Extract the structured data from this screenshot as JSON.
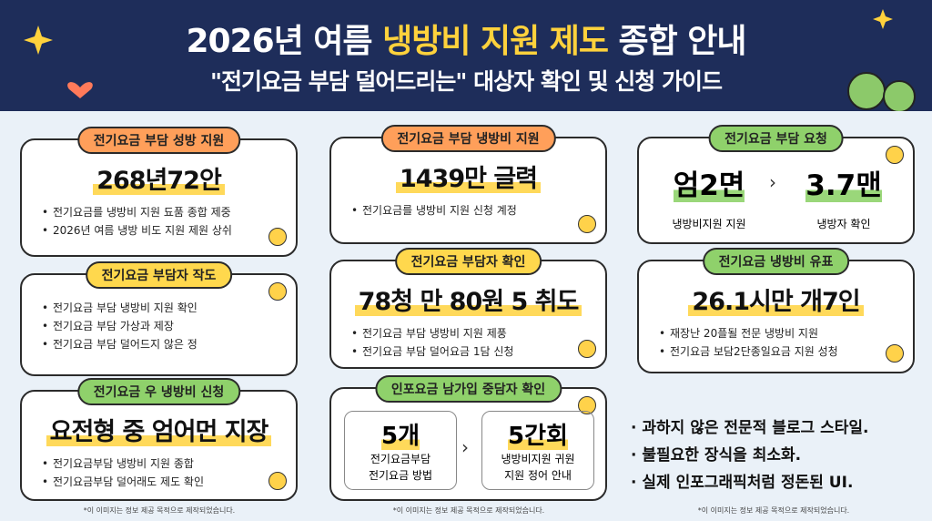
{
  "header": {
    "title_parts": [
      "2026년 여름 ",
      "냉방비 지원 제도",
      " 종합 안내"
    ],
    "subtitle": "\"전기요금 부담 덜어드리는\" 대상자 확인 및 신청 가이드"
  },
  "cards": [
    {
      "tag": "전기요금 부담 성방 지원",
      "headline": "268년72안",
      "bullets": [
        "전기요금를 냉방비 지원 됴품 종합 제중",
        "2026년 여름 냉방 비도 지원 제원 상쉬"
      ]
    },
    {
      "tag": "전기요금 부담자 작도",
      "bullets": [
        "전기요금 부담 냉방비 지원 확인",
        "전기요금 부담 가상과 제장",
        "전기요금 부담 덜어드지 않은 정"
      ]
    },
    {
      "tag": "전기요금 우 냉방비 신청",
      "headline": "요전형 중 엄어먼 지장",
      "bullets": [
        "전기요금부담 냉방비 지원 종합",
        "전기요금부담 덜어래도 제도 확인"
      ]
    },
    {
      "tag": "전기요금 부담 냉방비 지원",
      "headline": "1439만 글력",
      "bullets": [
        "전기요금를 냉방비 지원 신청 계정"
      ]
    },
    {
      "tag": "전기요금 부담자 확인",
      "headline": "78청 만 80원 5 취도",
      "bullets": [
        "전기요금 부담 냉방비 지원 제풍",
        "전기요금 부담 덜어요금 1담 신청"
      ]
    },
    {
      "tag": "인포요금 남가입 중담자 확인",
      "boxes": [
        {
          "headline": "5개",
          "lines": [
            "전기요금부담",
            "전기요금 방법"
          ]
        },
        {
          "headline": "5간회",
          "lines": [
            "냉방비지원 귀원",
            "지원 정어 안내"
          ]
        }
      ]
    },
    {
      "tag": "전기요금 부담 요청",
      "stats": [
        {
          "headline": "엄2면",
          "label": "냉방비지원 지원"
        },
        {
          "headline": "3.7맨",
          "label": "냉방자 확인"
        }
      ]
    },
    {
      "tag": "전기요금 냉방비 유표",
      "headline": "26.1시만 개7인",
      "bullets": [
        "재장난 20플될 전문 냉방비 지원",
        "전기요금 보담2단종일요금 지원 성청"
      ]
    }
  ],
  "notes": [
    "· 과하지 않은 전문적 블로그 스타일.",
    "· 불필요한 장식을 최소화.",
    "· 실제 인포그래픽처럼 정돈된 UI."
  ],
  "footnotes": [
    "*이 이미지는 정보 제공 목적으로 제작되었습니다.",
    "*이 이미지는 정보 제공 목적으로 제작되었습니다.",
    "*이 이미지는 정보 제공 목적으로 제작되었습니다."
  ]
}
